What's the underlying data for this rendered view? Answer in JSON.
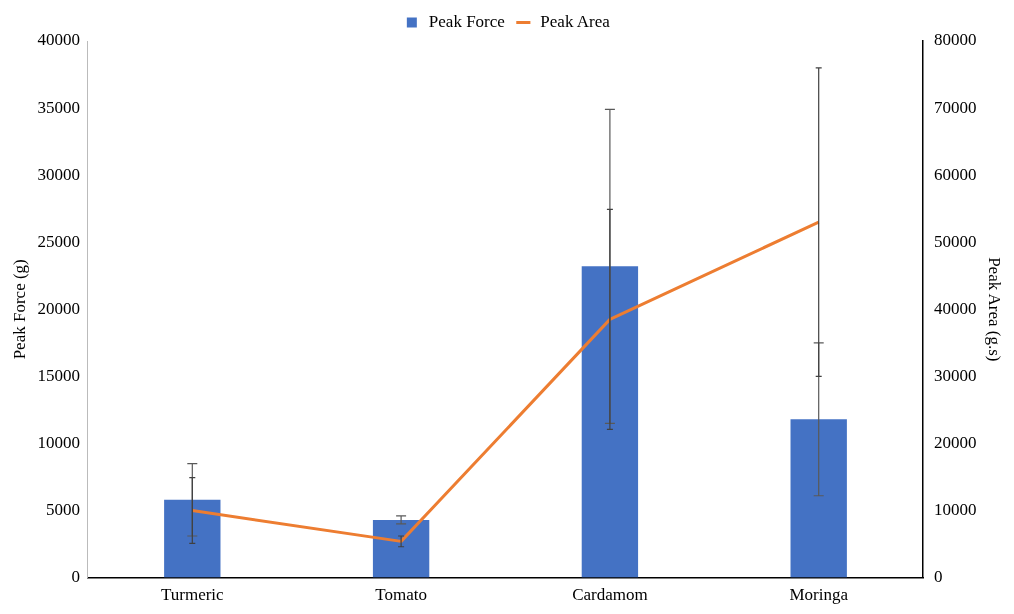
{
  "chart_data": {
    "type": "bar",
    "xlabel": null,
    "ylabel": "Peak Force (g)",
    "y2label": "Peak Area (g.s)",
    "categories": [
      "Turmeric",
      "Tomato",
      "Cardamom",
      "Moringa"
    ],
    "series": [
      {
        "name": "Peak Force",
        "color": "#4472c4",
        "values": [
          5800,
          4300,
          23200,
          11800
        ],
        "errors": [
          2700,
          300,
          11700,
          5700
        ]
      },
      {
        "name": "Peak Area",
        "type": "line",
        "axis": "y2",
        "color": "#ed7d31",
        "values": [
          10000,
          5400,
          38500,
          53000
        ],
        "errors": [
          4900,
          800,
          16400,
          23000
        ]
      }
    ],
    "ylim": [
      0,
      40000
    ],
    "yticks": [
      0,
      5000,
      10000,
      15000,
      20000,
      25000,
      30000,
      35000,
      40000
    ],
    "y2lim": [
      0,
      80000
    ],
    "y2ticks": [
      0,
      10000,
      20000,
      30000,
      40000,
      50000,
      60000,
      70000,
      80000
    ],
    "grid": false,
    "legend": "top",
    "marker": "none"
  }
}
